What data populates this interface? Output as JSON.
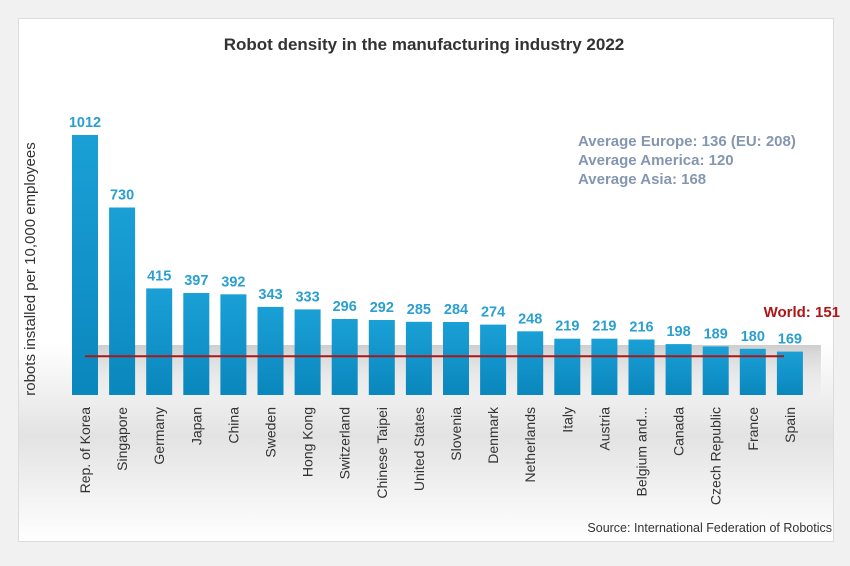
{
  "chart_data": {
    "type": "bar",
    "title": "Robot density in the manufacturing industry 2022",
    "ylabel": "robots installed per 10,000 employees",
    "xlabel": "",
    "categories": [
      "Rep. of Korea",
      "Singapore",
      "Germany",
      "Japan",
      "China",
      "Sweden",
      "Hong Kong",
      "Switzerland",
      "Chinese Taipei",
      "United States",
      "Slovenia",
      "Denmark",
      "Netherlands",
      "Italy",
      "Austria",
      "Belgium and...",
      "Canada",
      "Czech Republic",
      "France",
      "Spain"
    ],
    "values": [
      1012,
      730,
      415,
      397,
      392,
      343,
      333,
      296,
      292,
      285,
      284,
      274,
      248,
      219,
      219,
      216,
      198,
      189,
      180,
      169
    ],
    "ylim": [
      0,
      1012
    ],
    "grid": false,
    "bar_color": "#1aa0d6",
    "reference_line": {
      "label": "World: 151",
      "value": 151,
      "color": "#b01515"
    },
    "annotations": [
      "Average Europe: 136  (EU: 208)",
      "Average America: 120",
      "Average Asia: 168"
    ],
    "source": "Source: International Federation of Robotics"
  }
}
